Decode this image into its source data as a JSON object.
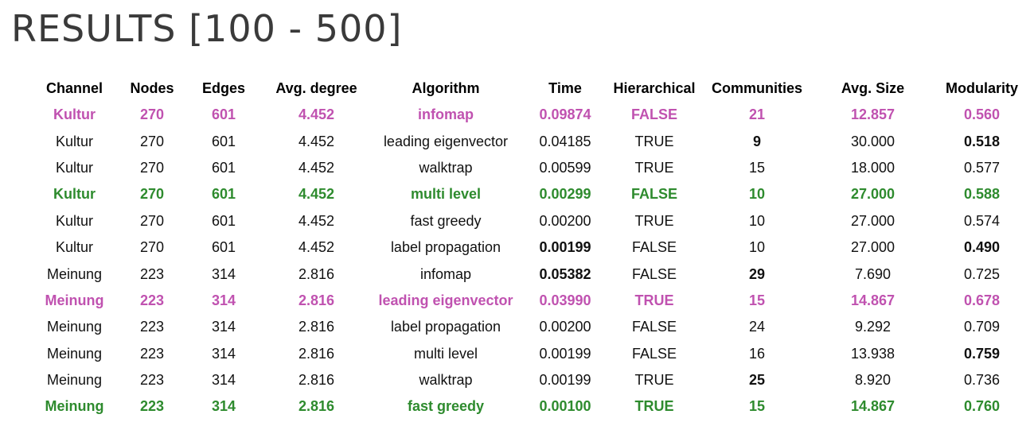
{
  "title": "RESULTS [100 - 500]",
  "colors": {
    "pink": "#c052b0",
    "green": "#2e8b2e"
  },
  "table": {
    "headers": [
      "Channel",
      "Nodes",
      "Edges",
      "Avg. degree",
      "Algorithm",
      "Time",
      "Hierarchical",
      "Communities",
      "Avg. Size",
      "Modularity"
    ],
    "rows": [
      {
        "highlight": "pink",
        "bold": [],
        "cells": [
          "Kultur",
          "270",
          "601",
          "4.452",
          "infomap",
          "0.09874",
          "FALSE",
          "21",
          "12.857",
          "0.560"
        ]
      },
      {
        "highlight": "none",
        "bold": [
          7,
          9
        ],
        "cells": [
          "Kultur",
          "270",
          "601",
          "4.452",
          "leading eigenvector",
          "0.04185",
          "TRUE",
          "9",
          "30.000",
          "0.518"
        ]
      },
      {
        "highlight": "none",
        "bold": [],
        "cells": [
          "Kultur",
          "270",
          "601",
          "4.452",
          "walktrap",
          "0.00599",
          "TRUE",
          "15",
          "18.000",
          "0.577"
        ]
      },
      {
        "highlight": "green",
        "bold": [],
        "cells": [
          "Kultur",
          "270",
          "601",
          "4.452",
          "multi level",
          "0.00299",
          "FALSE",
          "10",
          "27.000",
          "0.588"
        ]
      },
      {
        "highlight": "none",
        "bold": [],
        "cells": [
          "Kultur",
          "270",
          "601",
          "4.452",
          "fast greedy",
          "0.00200",
          "TRUE",
          "10",
          "27.000",
          "0.574"
        ]
      },
      {
        "highlight": "none",
        "bold": [
          5,
          9
        ],
        "cells": [
          "Kultur",
          "270",
          "601",
          "4.452",
          "label propagation",
          "0.00199",
          "FALSE",
          "10",
          "27.000",
          "0.490"
        ]
      },
      {
        "highlight": "none",
        "bold": [
          5,
          7
        ],
        "cells": [
          "Meinung",
          "223",
          "314",
          "2.816",
          "infomap",
          "0.05382",
          "FALSE",
          "29",
          "7.690",
          "0.725"
        ]
      },
      {
        "highlight": "pink",
        "bold": [],
        "cells": [
          "Meinung",
          "223",
          "314",
          "2.816",
          "leading eigenvector",
          "0.03990",
          "TRUE",
          "15",
          "14.867",
          "0.678"
        ]
      },
      {
        "highlight": "none",
        "bold": [],
        "cells": [
          "Meinung",
          "223",
          "314",
          "2.816",
          "label propagation",
          "0.00200",
          "FALSE",
          "24",
          "9.292",
          "0.709"
        ]
      },
      {
        "highlight": "none",
        "bold": [
          9
        ],
        "cells": [
          "Meinung",
          "223",
          "314",
          "2.816",
          "multi level",
          "0.00199",
          "FALSE",
          "16",
          "13.938",
          "0.759"
        ]
      },
      {
        "highlight": "none",
        "bold": [
          7
        ],
        "cells": [
          "Meinung",
          "223",
          "314",
          "2.816",
          "walktrap",
          "0.00199",
          "TRUE",
          "25",
          "8.920",
          "0.736"
        ]
      },
      {
        "highlight": "green",
        "bold": [],
        "cells": [
          "Meinung",
          "223",
          "314",
          "2.816",
          "fast greedy",
          "0.00100",
          "TRUE",
          "15",
          "14.867",
          "0.760"
        ]
      }
    ]
  }
}
